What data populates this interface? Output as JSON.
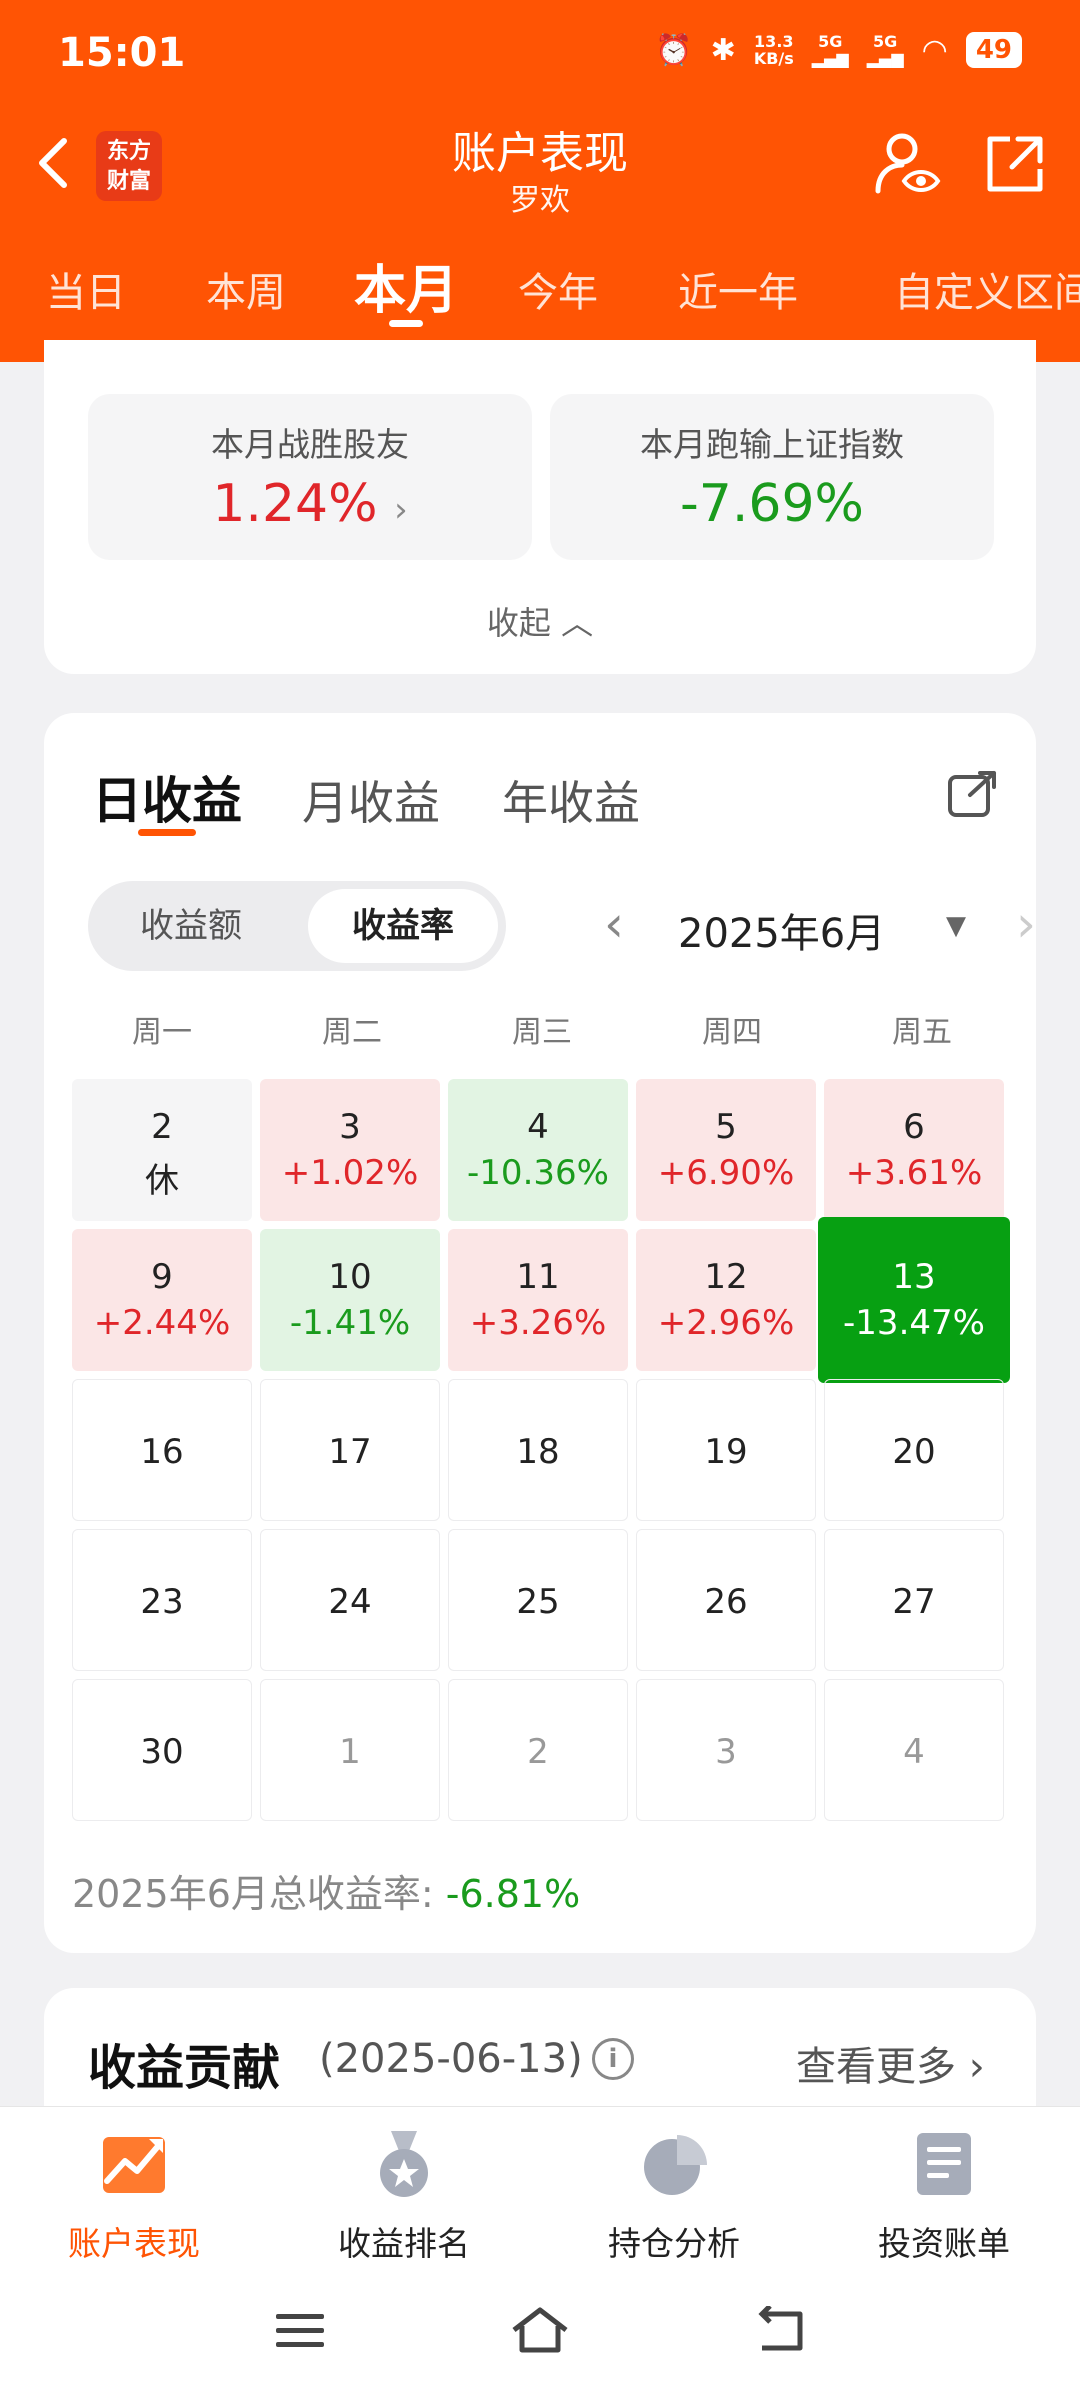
{
  "status_bar": {
    "time": "15:01",
    "speed_top": "13.3",
    "speed_bottom": "KB/s",
    "sig1": "5G",
    "sig2": "5G",
    "battery": "49"
  },
  "header": {
    "back_icon": "chevron-left-icon",
    "logo_line1": "东方",
    "logo_line2": "财富",
    "title": "账户表现",
    "subtitle": "罗欢",
    "icons": [
      "user-eye-icon",
      "share-out-icon"
    ]
  },
  "period_tabs": [
    {
      "label": "当日",
      "active": false
    },
    {
      "label": "本周",
      "active": false
    },
    {
      "label": "本月",
      "active": true
    },
    {
      "label": "今年",
      "active": false
    },
    {
      "label": "近一年",
      "active": false
    },
    {
      "label": "自定义区间",
      "active": false
    }
  ],
  "stats": {
    "beat_label": "本月战胜股友",
    "beat_value": "1.24%",
    "index_label": "本月跑输上证指数",
    "index_value": "-7.69%",
    "collapse_label": "收起"
  },
  "profit_card": {
    "tabs": [
      {
        "label": "日收益",
        "active": true
      },
      {
        "label": "月收益",
        "active": false
      },
      {
        "label": "年收益",
        "active": false
      }
    ],
    "segment": [
      {
        "label": "收益额",
        "active": false
      },
      {
        "label": "收益率",
        "active": true
      }
    ],
    "month_label": "2025年6月",
    "weekdays": [
      "周一",
      "周二",
      "周三",
      "周四",
      "周五"
    ],
    "days": [
      {
        "day": "2",
        "value": "休",
        "state": "rest"
      },
      {
        "day": "3",
        "value": "+1.02%",
        "state": "up"
      },
      {
        "day": "4",
        "value": "-10.36%",
        "state": "down"
      },
      {
        "day": "5",
        "value": "+6.90%",
        "state": "up"
      },
      {
        "day": "6",
        "value": "+3.61%",
        "state": "up"
      },
      {
        "day": "9",
        "value": "+2.44%",
        "state": "up"
      },
      {
        "day": "10",
        "value": "-1.41%",
        "state": "down"
      },
      {
        "day": "11",
        "value": "+3.26%",
        "state": "up"
      },
      {
        "day": "12",
        "value": "+2.96%",
        "state": "up"
      },
      {
        "day": "13",
        "value": "-13.47%",
        "state": "selected"
      },
      {
        "day": "16",
        "value": "",
        "state": "empty"
      },
      {
        "day": "17",
        "value": "",
        "state": "empty"
      },
      {
        "day": "18",
        "value": "",
        "state": "empty"
      },
      {
        "day": "19",
        "value": "",
        "state": "empty"
      },
      {
        "day": "20",
        "value": "",
        "state": "empty"
      },
      {
        "day": "23",
        "value": "",
        "state": "empty"
      },
      {
        "day": "24",
        "value": "",
        "state": "empty"
      },
      {
        "day": "25",
        "value": "",
        "state": "empty"
      },
      {
        "day": "26",
        "value": "",
        "state": "empty"
      },
      {
        "day": "27",
        "value": "",
        "state": "empty"
      },
      {
        "day": "30",
        "value": "",
        "state": "empty"
      },
      {
        "day": "1",
        "value": "",
        "state": "muted"
      },
      {
        "day": "2",
        "value": "",
        "state": "muted"
      },
      {
        "day": "3",
        "value": "",
        "state": "muted"
      },
      {
        "day": "4",
        "value": "",
        "state": "muted"
      }
    ],
    "total_label": "2025年6月总收益率:",
    "total_value": "-6.81%"
  },
  "contribution": {
    "title": "收益贡献",
    "date": "(2025-06-13)",
    "more_label": "查看更多"
  },
  "bottom_nav": [
    {
      "label": "账户表现",
      "icon": "trend-chart-icon",
      "active": true
    },
    {
      "label": "收益排名",
      "icon": "medal-icon",
      "active": false
    },
    {
      "label": "持仓分析",
      "icon": "pie-chart-icon",
      "active": false
    },
    {
      "label": "投资账单",
      "icon": "bill-icon",
      "active": false
    }
  ],
  "colors": {
    "brand": "#ff5404",
    "up": "#e0262a",
    "down": "#1a9b1d",
    "selected": "#07a012"
  }
}
